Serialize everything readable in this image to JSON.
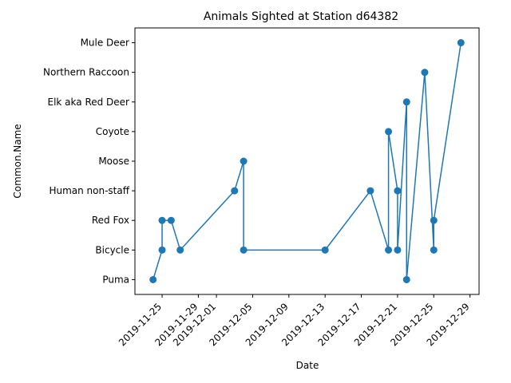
{
  "chart_data": {
    "type": "line",
    "title": "Animals Sighted at Station d64382",
    "xlabel": "Date",
    "ylabel": "Common.Name",
    "categories": [
      "Puma",
      "Bicycle",
      "Red Fox",
      "Human non-staff",
      "Moose",
      "Coyote",
      "Elk aka Red Deer",
      "Northern Raccoon",
      "Mule Deer"
    ],
    "x_ticks": [
      "2019-11-25",
      "2019-11-29",
      "2019-12-01",
      "2019-12-05",
      "2019-12-09",
      "2019-12-13",
      "2019-12-17",
      "2019-12-21",
      "2019-12-25",
      "2019-12-29"
    ],
    "xlim": [
      "2019-11-22",
      "2019-12-30"
    ],
    "marker": "circle",
    "color": "#1f77b4",
    "grid": false,
    "series": [
      {
        "x": [
          "2019-11-24",
          "2019-11-25",
          "2019-11-25",
          "2019-11-26",
          "2019-11-27",
          "2019-12-03",
          "2019-12-04",
          "2019-12-04",
          "2019-12-13",
          "2019-12-18",
          "2019-12-20",
          "2019-12-20",
          "2019-12-21",
          "2019-12-21",
          "2019-12-22",
          "2019-12-22",
          "2019-12-24",
          "2019-12-25",
          "2019-12-25",
          "2019-12-28"
        ],
        "y": [
          "Puma",
          "Bicycle",
          "Red Fox",
          "Red Fox",
          "Bicycle",
          "Human non-staff",
          "Moose",
          "Bicycle",
          "Bicycle",
          "Human non-staff",
          "Bicycle",
          "Coyote",
          "Human non-staff",
          "Bicycle",
          "Elk aka Red Deer",
          "Puma",
          "Northern Raccoon",
          "Bicycle",
          "Red Fox",
          "Mule Deer"
        ]
      }
    ]
  }
}
